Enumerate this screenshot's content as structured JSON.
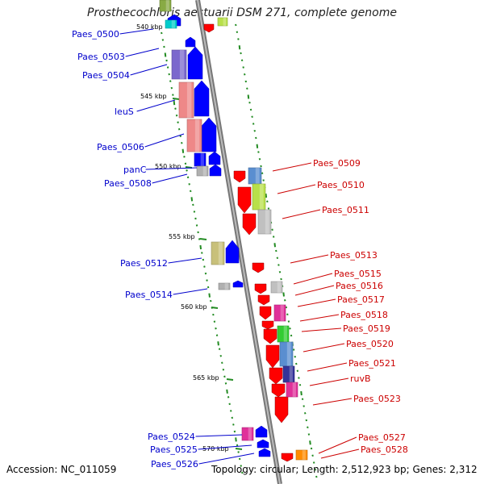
{
  "title": "Prosthecochloris aestuarii DSM 271, complete genome",
  "accession": "Accession: NC_011059",
  "summary": "Topology: circular; Length: 2,512,923 bp; Genes: 2,312",
  "ticks": [
    "540 kbp",
    "545 kbp",
    "550 kbp",
    "555 kbp",
    "560 kbp",
    "565 kbp",
    "570 kbp"
  ],
  "colors": {
    "forward_label": "#0000cc",
    "reverse_label": "#cc0000",
    "backbone": "#999999",
    "gc_skew": "#228b22"
  },
  "forward_genes": [
    {
      "label": "Paes_0500",
      "color": "#00cccc"
    },
    {
      "label": "Paes_0503",
      "color": "#7b68cd"
    },
    {
      "label": "Paes_0504",
      "color": "#0000ff"
    },
    {
      "label": "leuS",
      "color": "#ee8888"
    },
    {
      "label": "Paes_0506",
      "color": "#ee8888"
    },
    {
      "label": "panC",
      "color": "#0000ff"
    },
    {
      "label": "Paes_0508",
      "color": "#b0b0b0"
    },
    {
      "label": "Paes_0512",
      "color": "#c8c07a"
    },
    {
      "label": "Paes_0514",
      "color": "#b0b0b0"
    },
    {
      "label": "Paes_0524",
      "color": "#e0309a"
    },
    {
      "label": "Paes_0525",
      "color": "#0000ff"
    },
    {
      "label": "Paes_0526",
      "color": "#0000ff"
    }
  ],
  "reverse_genes": [
    {
      "label": "Paes_0509",
      "color": "#5a8ed0"
    },
    {
      "label": "Paes_0510",
      "color": "#b8e04a"
    },
    {
      "label": "Paes_0511",
      "color": "#c0c0c0"
    },
    {
      "label": "Paes_0513",
      "color": "#ff0000"
    },
    {
      "label": "Paes_0515",
      "color": "#c0c0c0"
    },
    {
      "label": "Paes_0516",
      "color": "#ff0000"
    },
    {
      "label": "Paes_0517",
      "color": "#ff0000"
    },
    {
      "label": "Paes_0518",
      "color": "#e0309a"
    },
    {
      "label": "Paes_0519",
      "color": "#33cc33"
    },
    {
      "label": "Paes_0520",
      "color": "#5a8ed0"
    },
    {
      "label": "Paes_0521",
      "color": "#5a8ed0"
    },
    {
      "label": "ruvB",
      "color": "#333399"
    },
    {
      "label": "Paes_0523",
      "color": "#e0309a"
    },
    {
      "label": "Paes_0527",
      "color": "#ff0000"
    },
    {
      "label": "Paes_0528",
      "color": "#ff8c00"
    }
  ]
}
